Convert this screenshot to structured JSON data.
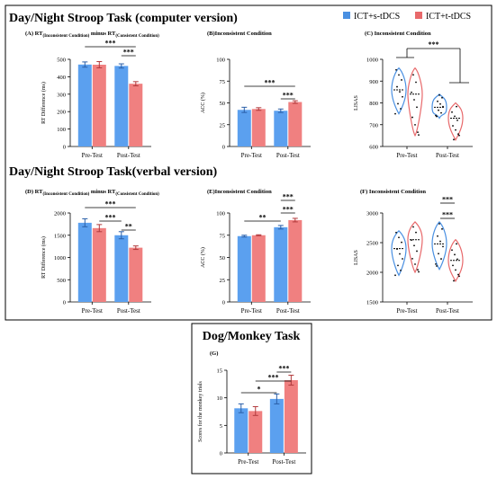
{
  "colors": {
    "sham": "#4a90e2",
    "sham_fill": "#5ba0ef",
    "active": "#e8696b",
    "active_fill": "#f08080",
    "error_bar": "#000000",
    "sig_line": "#000000"
  },
  "legend": {
    "items": [
      {
        "label": "ICT+s-tDCS",
        "color": "#4a90e2"
      },
      {
        "label": "ICT+t-tDCS",
        "color": "#e8696b"
      }
    ]
  },
  "sections": [
    {
      "title": "Day/Night Stroop Task (computer version)"
    },
    {
      "title": "Day/Night Stroop Task(verbal version)"
    },
    {
      "title": "Dog/Monkey Task"
    }
  ],
  "chart_data": [
    {
      "id": "A",
      "type": "bar",
      "title": "(A) RT(Inconsistent Condition) minus RT(Consistent Condition)",
      "title_parts": {
        "a": "(A) RT",
        "a_sub": "(Inconsistent Condition)",
        "b": " minus RT",
        "b_sub": "(Consistent Condition)"
      },
      "categories": [
        "Pre-Test",
        "Post-Test"
      ],
      "series": [
        {
          "name": "ICT+s-tDCS",
          "values": [
            470,
            462
          ],
          "errors": [
            15,
            12
          ]
        },
        {
          "name": "ICT+t-tDCS",
          "values": [
            469,
            360
          ],
          "errors": [
            18,
            12
          ]
        }
      ],
      "ylabel": "RT Difference (ms)",
      "ylim": [
        0,
        500
      ],
      "yticks": [
        "0",
        "100",
        "200",
        "300",
        "400",
        "500"
      ],
      "significance": [
        "***",
        "***"
      ]
    },
    {
      "id": "B",
      "type": "bar",
      "title": "(B)Inconsistent Condition",
      "categories": [
        "Pre-Test",
        "Post-Test"
      ],
      "series": [
        {
          "name": "ICT+s-tDCS",
          "values": [
            42,
            41
          ],
          "errors": [
            3,
            2
          ]
        },
        {
          "name": "ICT+t-tDCS",
          "values": [
            43,
            51
          ],
          "errors": [
            1.5,
            1.5
          ]
        }
      ],
      "ylabel": "ACC (%)",
      "ylim": [
        0,
        100
      ],
      "yticks": [
        "0",
        "25",
        "50",
        "75",
        "100"
      ],
      "significance": [
        "***",
        "***"
      ]
    },
    {
      "id": "C",
      "type": "violin",
      "title": "(C) Inconsistent Condition",
      "categories": [
        "Pre-Test",
        "Post-Test"
      ],
      "series": [
        {
          "name": "ICT+s-tDCS",
          "medians": [
            860,
            780
          ],
          "ranges": [
            [
              750,
              960
            ],
            [
              730,
              840
            ]
          ]
        },
        {
          "name": "ICT+t-tDCS",
          "medians": [
            840,
            730
          ],
          "ranges": [
            [
              650,
              960
            ],
            [
              630,
              800
            ]
          ]
        }
      ],
      "ylabel": "LISAS",
      "ylim": [
        600,
        1000
      ],
      "yticks": [
        "600",
        "700",
        "800",
        "900",
        "1000"
      ],
      "significance": [
        "***"
      ]
    },
    {
      "id": "D",
      "type": "bar",
      "title": "(D) RT(Inconsistent Condition) minus RT(Consistent Condition)",
      "title_parts": {
        "a": "(D) RT",
        "a_sub": "(Inconsistent Condition)",
        "b": " minus RT",
        "b_sub": "(Consistent Condition)"
      },
      "categories": [
        "Pre-Test",
        "Post-Test"
      ],
      "series": [
        {
          "name": "ICT+s-tDCS",
          "values": [
            1780,
            1500
          ],
          "errors": [
            90,
            80
          ]
        },
        {
          "name": "ICT+t-tDCS",
          "values": [
            1660,
            1220
          ],
          "errors": [
            80,
            40
          ]
        }
      ],
      "ylabel": "RT Difference (ms)",
      "ylim": [
        0,
        2000
      ],
      "yticks": [
        "0",
        "500",
        "1000",
        "1500",
        "2000"
      ],
      "significance": [
        "***",
        "***",
        "**"
      ]
    },
    {
      "id": "E",
      "type": "bar",
      "title": "(E)Inconsistent Condition",
      "categories": [
        "Pre-Test",
        "Post-Test"
      ],
      "series": [
        {
          "name": "ICT+s-tDCS",
          "values": [
            74,
            84
          ],
          "errors": [
            1,
            2
          ]
        },
        {
          "name": "ICT+t-tDCS",
          "values": [
            75,
            92
          ],
          "errors": [
            0.5,
            2
          ]
        }
      ],
      "ylabel": "ACC (%)",
      "ylim": [
        0,
        100
      ],
      "yticks": [
        "0",
        "25",
        "50",
        "75",
        "100"
      ],
      "significance": [
        "***",
        "***",
        "**"
      ]
    },
    {
      "id": "F",
      "type": "violin",
      "title": "(F) Inconsistent Condition",
      "categories": [
        "Pre-Test",
        "Post-Test"
      ],
      "series": [
        {
          "name": "ICT+s-tDCS",
          "medians": [
            2400,
            2480
          ],
          "ranges": [
            [
              1950,
              2700
            ],
            [
              2050,
              2850
            ]
          ]
        },
        {
          "name": "ICT+t-tDCS",
          "medians": [
            2550,
            2200
          ],
          "ranges": [
            [
              2000,
              2850
            ],
            [
              1850,
              2550
            ]
          ]
        }
      ],
      "ylabel": "LISAS",
      "ylim": [
        1500,
        3000
      ],
      "yticks": [
        "1500",
        "2000",
        "2500",
        "3000"
      ],
      "significance": [
        "***",
        "***"
      ]
    },
    {
      "id": "G",
      "type": "bar",
      "title": "(G)",
      "categories": [
        "Pre-Test",
        "Post-Test"
      ],
      "series": [
        {
          "name": "ICT+s-tDCS",
          "values": [
            8.1,
            9.8
          ],
          "errors": [
            0.8,
            0.9
          ]
        },
        {
          "name": "ICT+t-tDCS",
          "values": [
            7.6,
            13.2
          ],
          "errors": [
            0.8,
            0.9
          ]
        }
      ],
      "ylabel": "Scores for the monkey trials",
      "ylim": [
        0,
        15
      ],
      "yticks": [
        "0",
        "5",
        "10",
        "15"
      ],
      "significance": [
        "***",
        "***",
        "*"
      ]
    }
  ]
}
